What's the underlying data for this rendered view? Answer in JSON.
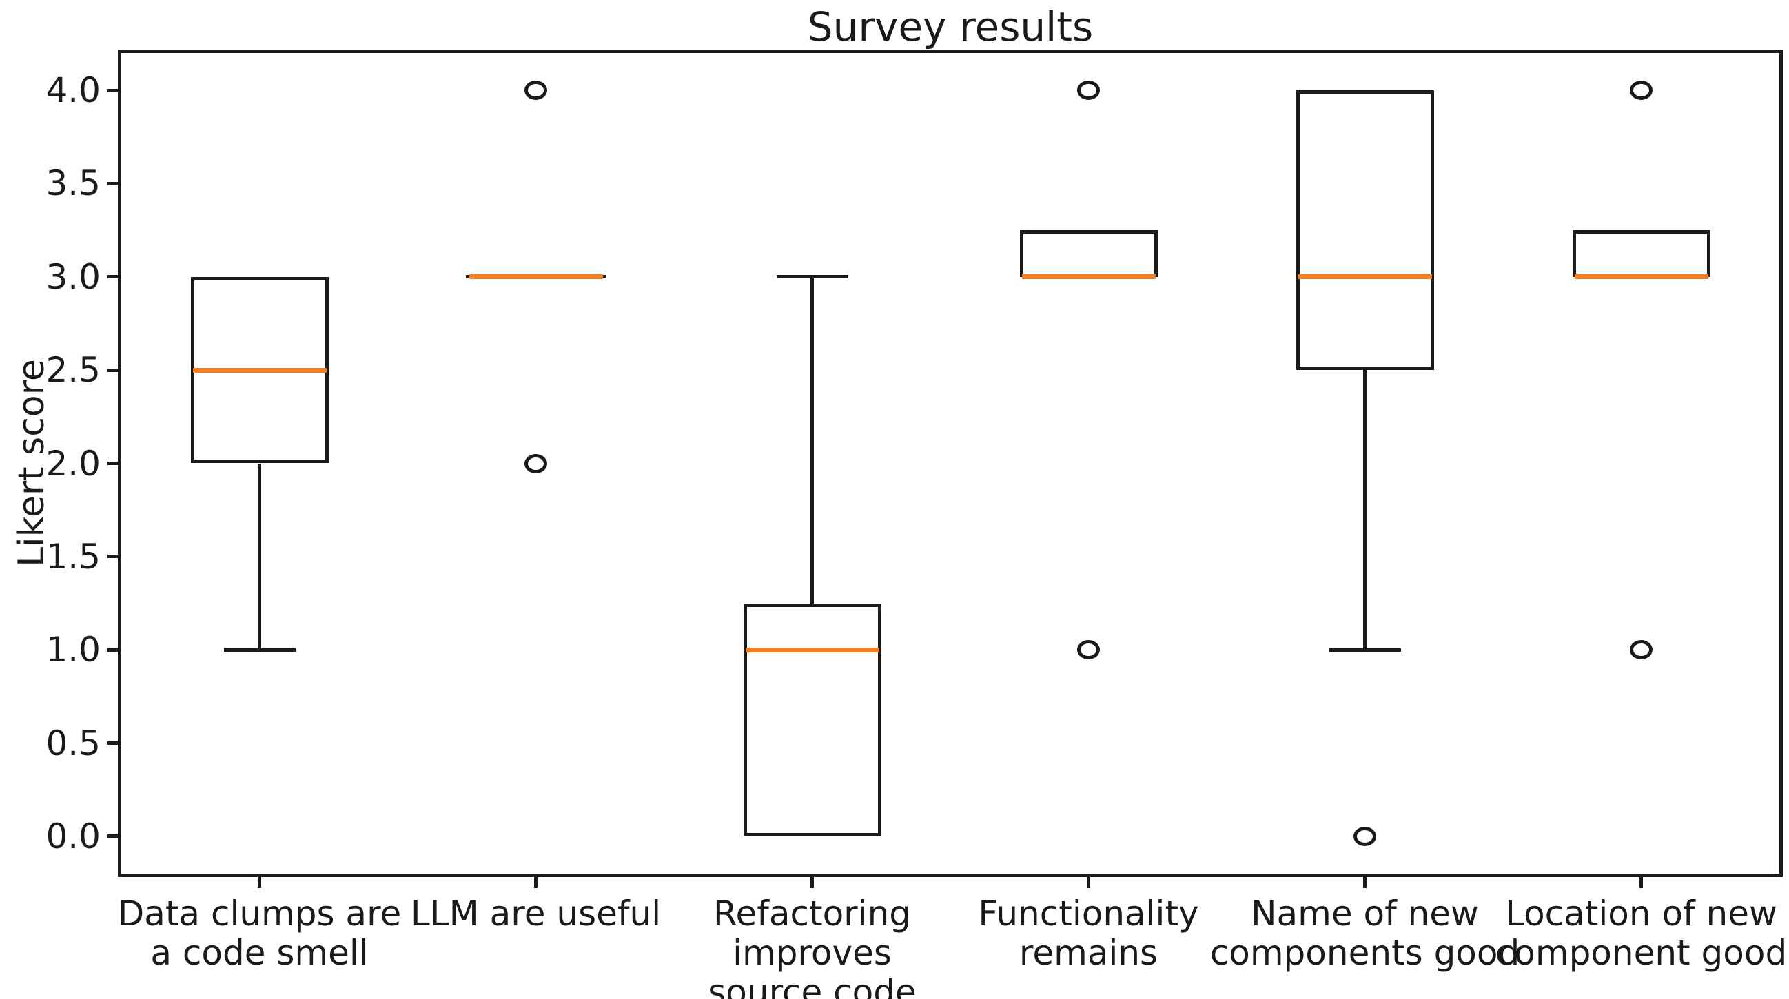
{
  "figure": {
    "background": "#ffffff",
    "ink_color": "#1a1a1a"
  },
  "chart_data": {
    "type": "boxplot",
    "title": "Survey results",
    "ylabel": "Likert score",
    "xlabel": "",
    "ylim": [
      -0.2,
      4.2
    ],
    "grid": false,
    "legend": false,
    "ytick_values": [
      0.0,
      0.5,
      1.0,
      1.5,
      2.0,
      2.5,
      3.0,
      3.5,
      4.0
    ],
    "ytick_labels": [
      "0.0",
      "0.5",
      "1.0",
      "1.5",
      "2.0",
      "2.5",
      "3.0",
      "3.5",
      "4.0"
    ],
    "categories": [
      "Data clumps are\na code smell",
      "LLM are useful",
      "Refactoring\nimproves\nsource code",
      "Functionality\nremains",
      "Name of new\ncomponents good",
      "Location of new\ncomponent good"
    ],
    "boxes": [
      {
        "q1": 2.0,
        "median": 2.5,
        "q3": 3.0,
        "whisker_low": 1.0,
        "whisker_high": 3.0,
        "outliers": []
      },
      {
        "q1": 3.0,
        "median": 3.0,
        "q3": 3.0,
        "whisker_low": 3.0,
        "whisker_high": 3.0,
        "outliers": [
          4.0,
          2.0
        ]
      },
      {
        "q1": 0.0,
        "median": 1.0,
        "q3": 1.25,
        "whisker_low": 0.0,
        "whisker_high": 3.0,
        "outliers": []
      },
      {
        "q1": 3.0,
        "median": 3.0,
        "q3": 3.25,
        "whisker_low": 3.0,
        "whisker_high": 3.25,
        "outliers": [
          4.0,
          1.0
        ]
      },
      {
        "q1": 2.5,
        "median": 3.0,
        "q3": 4.0,
        "whisker_low": 1.0,
        "whisker_high": 4.0,
        "outliers": [
          0.0
        ]
      },
      {
        "q1": 3.0,
        "median": 3.0,
        "q3": 3.25,
        "whisker_low": 3.0,
        "whisker_high": 3.25,
        "outliers": [
          4.0,
          1.0
        ]
      }
    ],
    "colors": {
      "box_line": "#1a1a1a",
      "median_line": "#f57e20",
      "background": "#ffffff"
    }
  }
}
